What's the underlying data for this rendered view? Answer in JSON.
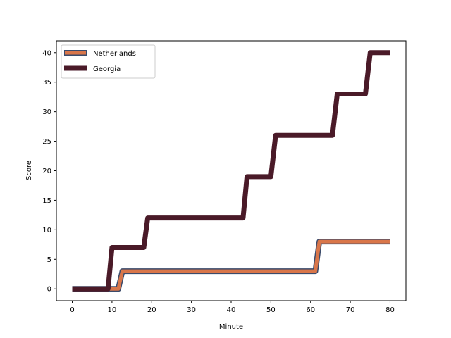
{
  "chart_data": {
    "type": "line",
    "title": "",
    "xlabel": "Minute",
    "ylabel": "Score",
    "xlim": [
      -4,
      84
    ],
    "ylim": [
      -2,
      42
    ],
    "xticks": [
      0,
      10,
      20,
      30,
      40,
      50,
      60,
      70,
      80
    ],
    "yticks": [
      0,
      5,
      10,
      15,
      20,
      25,
      30,
      35,
      40
    ],
    "grid": false,
    "legend_position": "top-left",
    "series": [
      {
        "name": "Netherlands",
        "color": "#d9764a",
        "edge_color": "#3b4b6b",
        "style": "outlined-thick-line",
        "x": [
          0,
          11.6,
          12.6,
          61.2,
          62.2,
          80
        ],
        "y": [
          0,
          0,
          3,
          3,
          8,
          8
        ]
      },
      {
        "name": "Georgia",
        "color": "#4a1a28",
        "edge_color": "#4a1a28",
        "style": "thick-line",
        "x": [
          0,
          9,
          10,
          18,
          19,
          43,
          44,
          50,
          51.2,
          65.5,
          66.7,
          73.8,
          75,
          80
        ],
        "y": [
          0,
          0,
          7,
          7,
          12,
          12,
          19,
          19,
          26,
          26,
          33,
          33,
          40,
          40
        ]
      }
    ]
  }
}
